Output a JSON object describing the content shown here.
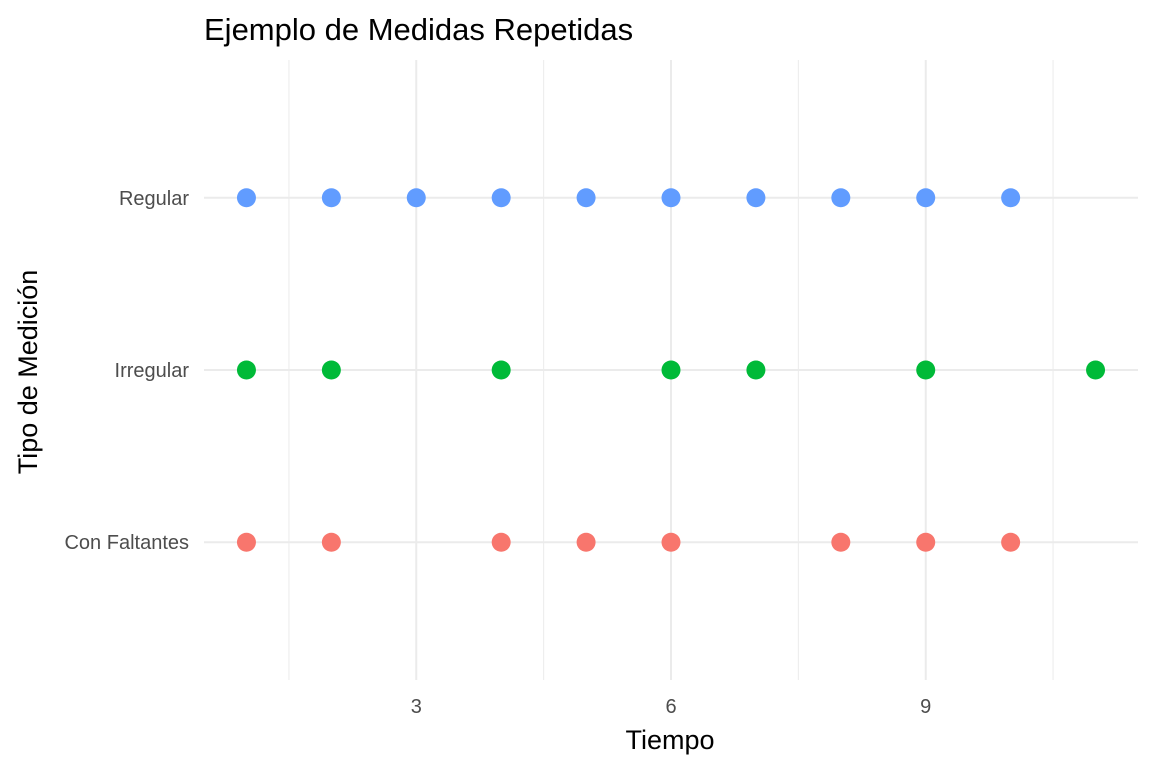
{
  "chart_data": {
    "type": "scatter",
    "title": "Ejemplo de Medidas Repetidas",
    "xlabel": "Tiempo",
    "ylabel": "Tipo de Medición",
    "xlim": [
      0.5,
      11.5
    ],
    "x_ticks": [
      3,
      6,
      9
    ],
    "x_minor_ticks": [
      1.5,
      4.5,
      7.5,
      10.5
    ],
    "categories": [
      "Con Faltantes",
      "Irregular",
      "Regular"
    ],
    "grid": true,
    "legend": "none",
    "series": [
      {
        "category": "Regular",
        "color": "#619CFF",
        "x": [
          1,
          2,
          3,
          4,
          5,
          6,
          7,
          8,
          9,
          10
        ]
      },
      {
        "category": "Irregular",
        "color": "#00BA38",
        "x": [
          1,
          2,
          4,
          6,
          7,
          9,
          11
        ]
      },
      {
        "category": "Con Faltantes",
        "color": "#F8766D",
        "x": [
          1,
          2,
          4,
          5,
          6,
          8,
          9,
          10
        ]
      }
    ]
  }
}
